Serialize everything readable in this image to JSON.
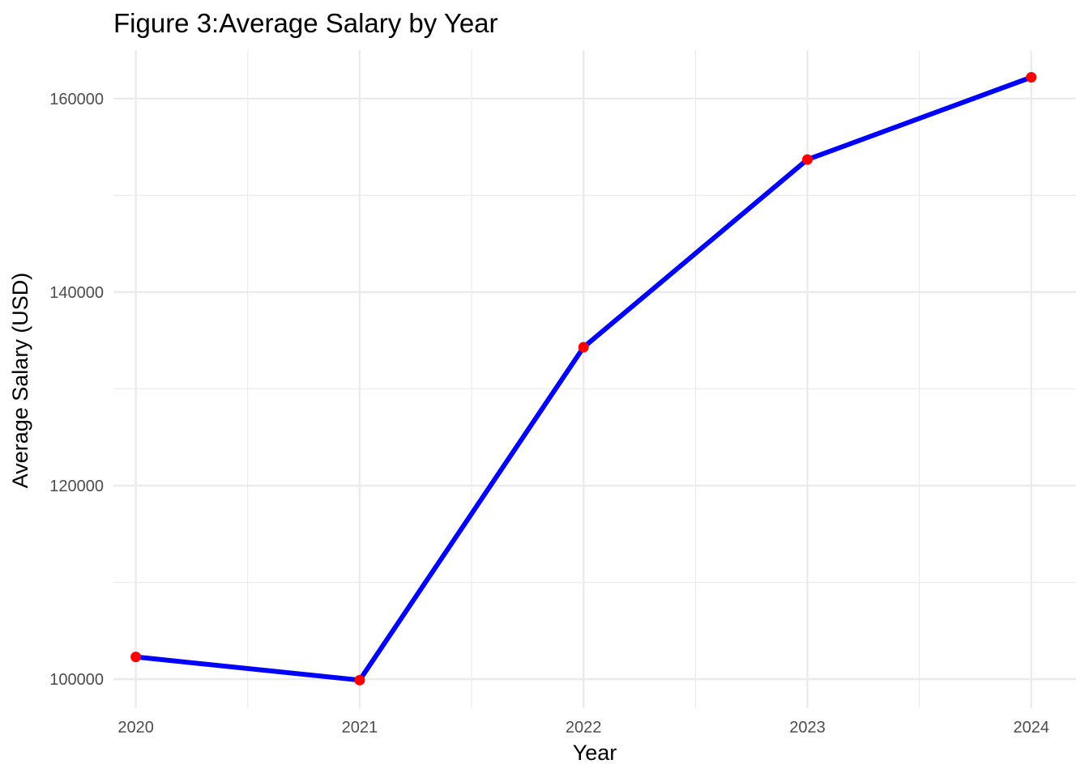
{
  "chart_data": {
    "type": "line",
    "title": "Figure 3:Average Salary by Year",
    "xlabel": "Year",
    "ylabel": "Average Salary (USD)",
    "x": [
      2020,
      2021,
      2022,
      2023,
      2024
    ],
    "x_tick_labels": [
      "2020",
      "2021",
      "2022",
      "2023",
      "2024"
    ],
    "y_ticks": [
      100000,
      120000,
      140000,
      160000
    ],
    "y_tick_labels": [
      "100000",
      "120000",
      "140000",
      "160000"
    ],
    "series": [
      {
        "values": [
          102300,
          99900,
          134300,
          153700,
          162200
        ]
      }
    ],
    "xlim": [
      2019.9,
      2024.2
    ],
    "ylim": [
      97000,
      165000
    ],
    "grid": true,
    "legend": "none",
    "line_color": "#0000ff",
    "point_color": "#ff0000",
    "grid_color": "#ebebeb"
  }
}
